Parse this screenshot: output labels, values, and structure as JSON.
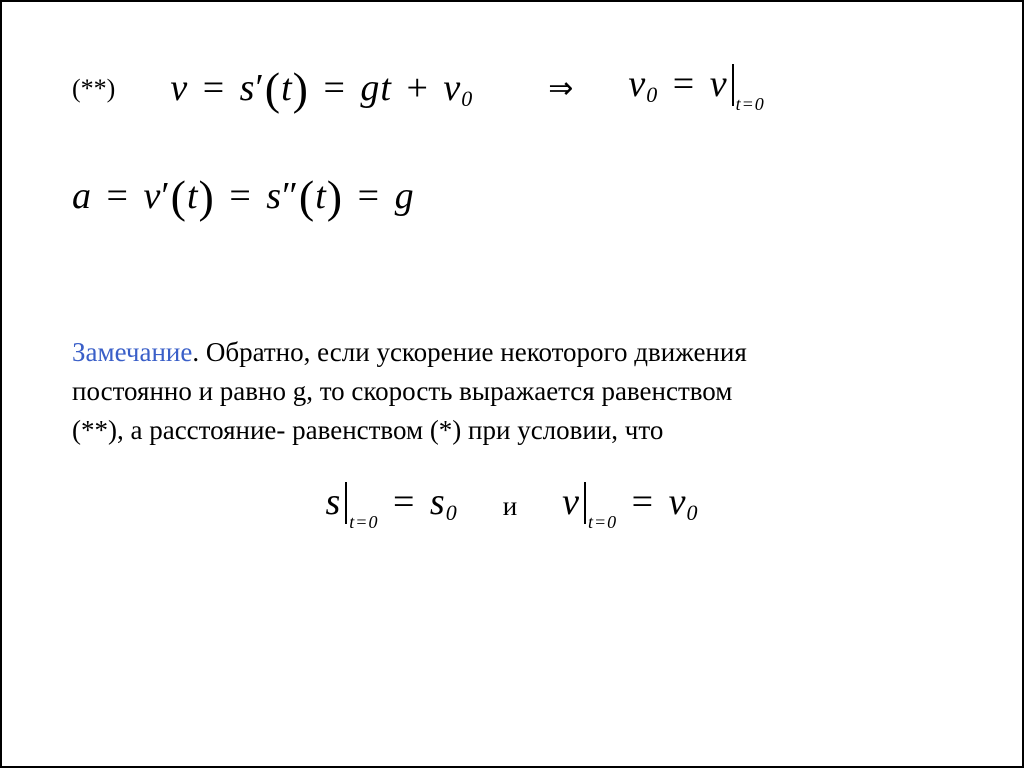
{
  "colors": {
    "text": "#000000",
    "remark_label": "#3a5fc8",
    "background": "#ffffff",
    "border": "#000000"
  },
  "row1": {
    "marker": "(**)",
    "eq_left": {
      "v": "v",
      "eq1": "=",
      "s": "s",
      "prime": "′",
      "t": "t",
      "eq2": "=",
      "g": "g",
      "t2": "t",
      "plus": "+",
      "v2": "v",
      "sub0": "0"
    },
    "arrow": "⇒",
    "eq_right": {
      "v": "v",
      "sub0": "0",
      "eq": "=",
      "v2": "v",
      "cond": "t=0"
    }
  },
  "row2": {
    "a": "a",
    "eq1": "=",
    "v": "v",
    "prime1": "′",
    "t1": "t",
    "eq2": "=",
    "s": "s",
    "prime2": "″",
    "t2": "t",
    "eq3": "=",
    "g": "g"
  },
  "remark": {
    "label": "Замечание",
    "text_after_label": ". Обратно, если ускорение некоторого движения",
    "line2": " постоянно и равно g, то скорость выражается равенством",
    "line3": "(**), а расстояние- равенством (*) при условии, что"
  },
  "row4": {
    "left": {
      "s": "s",
      "cond": "t=0",
      "eq": "=",
      "s2": "s",
      "sub0": "0"
    },
    "conj": "и",
    "right": {
      "v": "v",
      "cond": "t=0",
      "eq": "=",
      "v2": "v",
      "sub0": "0"
    }
  }
}
